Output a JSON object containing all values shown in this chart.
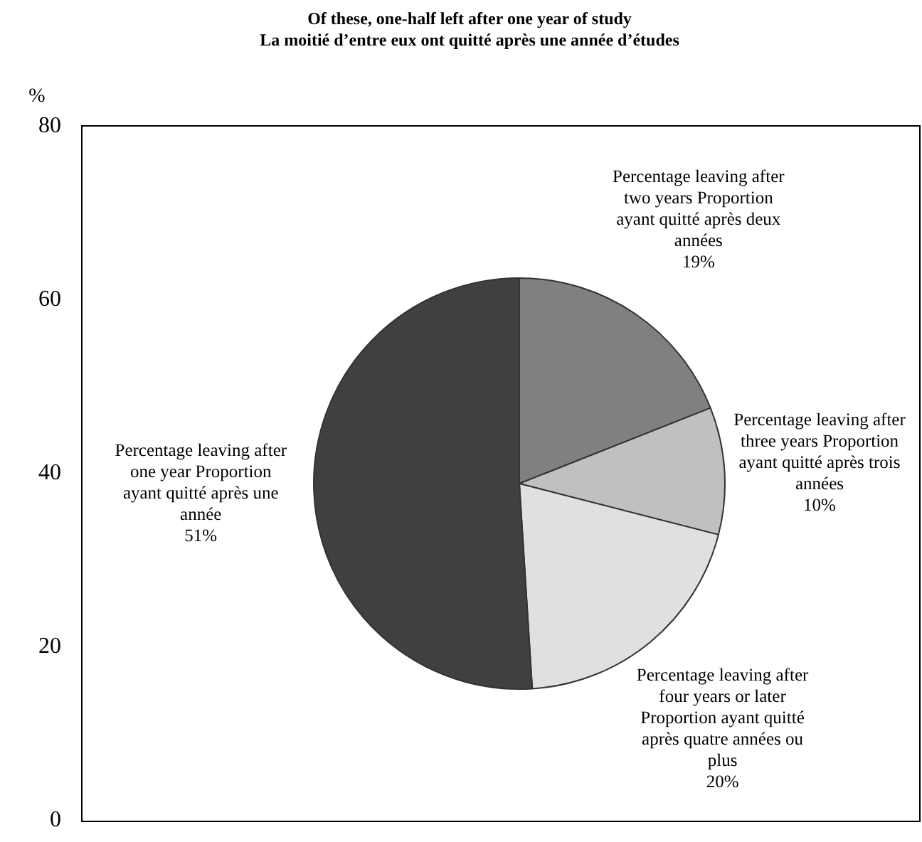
{
  "chart_data": {
    "type": "pie",
    "title": "Of these, one-half left after one year of study\nLa moitié d’entre eux ont quitté après une année d’études",
    "annotations": [
      "%",
      "80",
      "60",
      "40",
      "20",
      "0"
    ],
    "categories": [
      "Percentage leaving after two years Proportion ayant quitté après deux années",
      "Percentage leaving after three years Proportion ayant quitté après trois années",
      "Percentage leaving after four years or later Proportion ayant quitté après quatre années ou plus",
      "Percentage leaving after one year Proportion ayant quitté après une année"
    ],
    "values": [
      19,
      10,
      20,
      51
    ],
    "value_labels": [
      "19%",
      "10%",
      "20%",
      "51%"
    ],
    "colors": [
      "#808080",
      "#c0c0c0",
      "#e0e0e0",
      "#404040"
    ],
    "legend": false
  }
}
